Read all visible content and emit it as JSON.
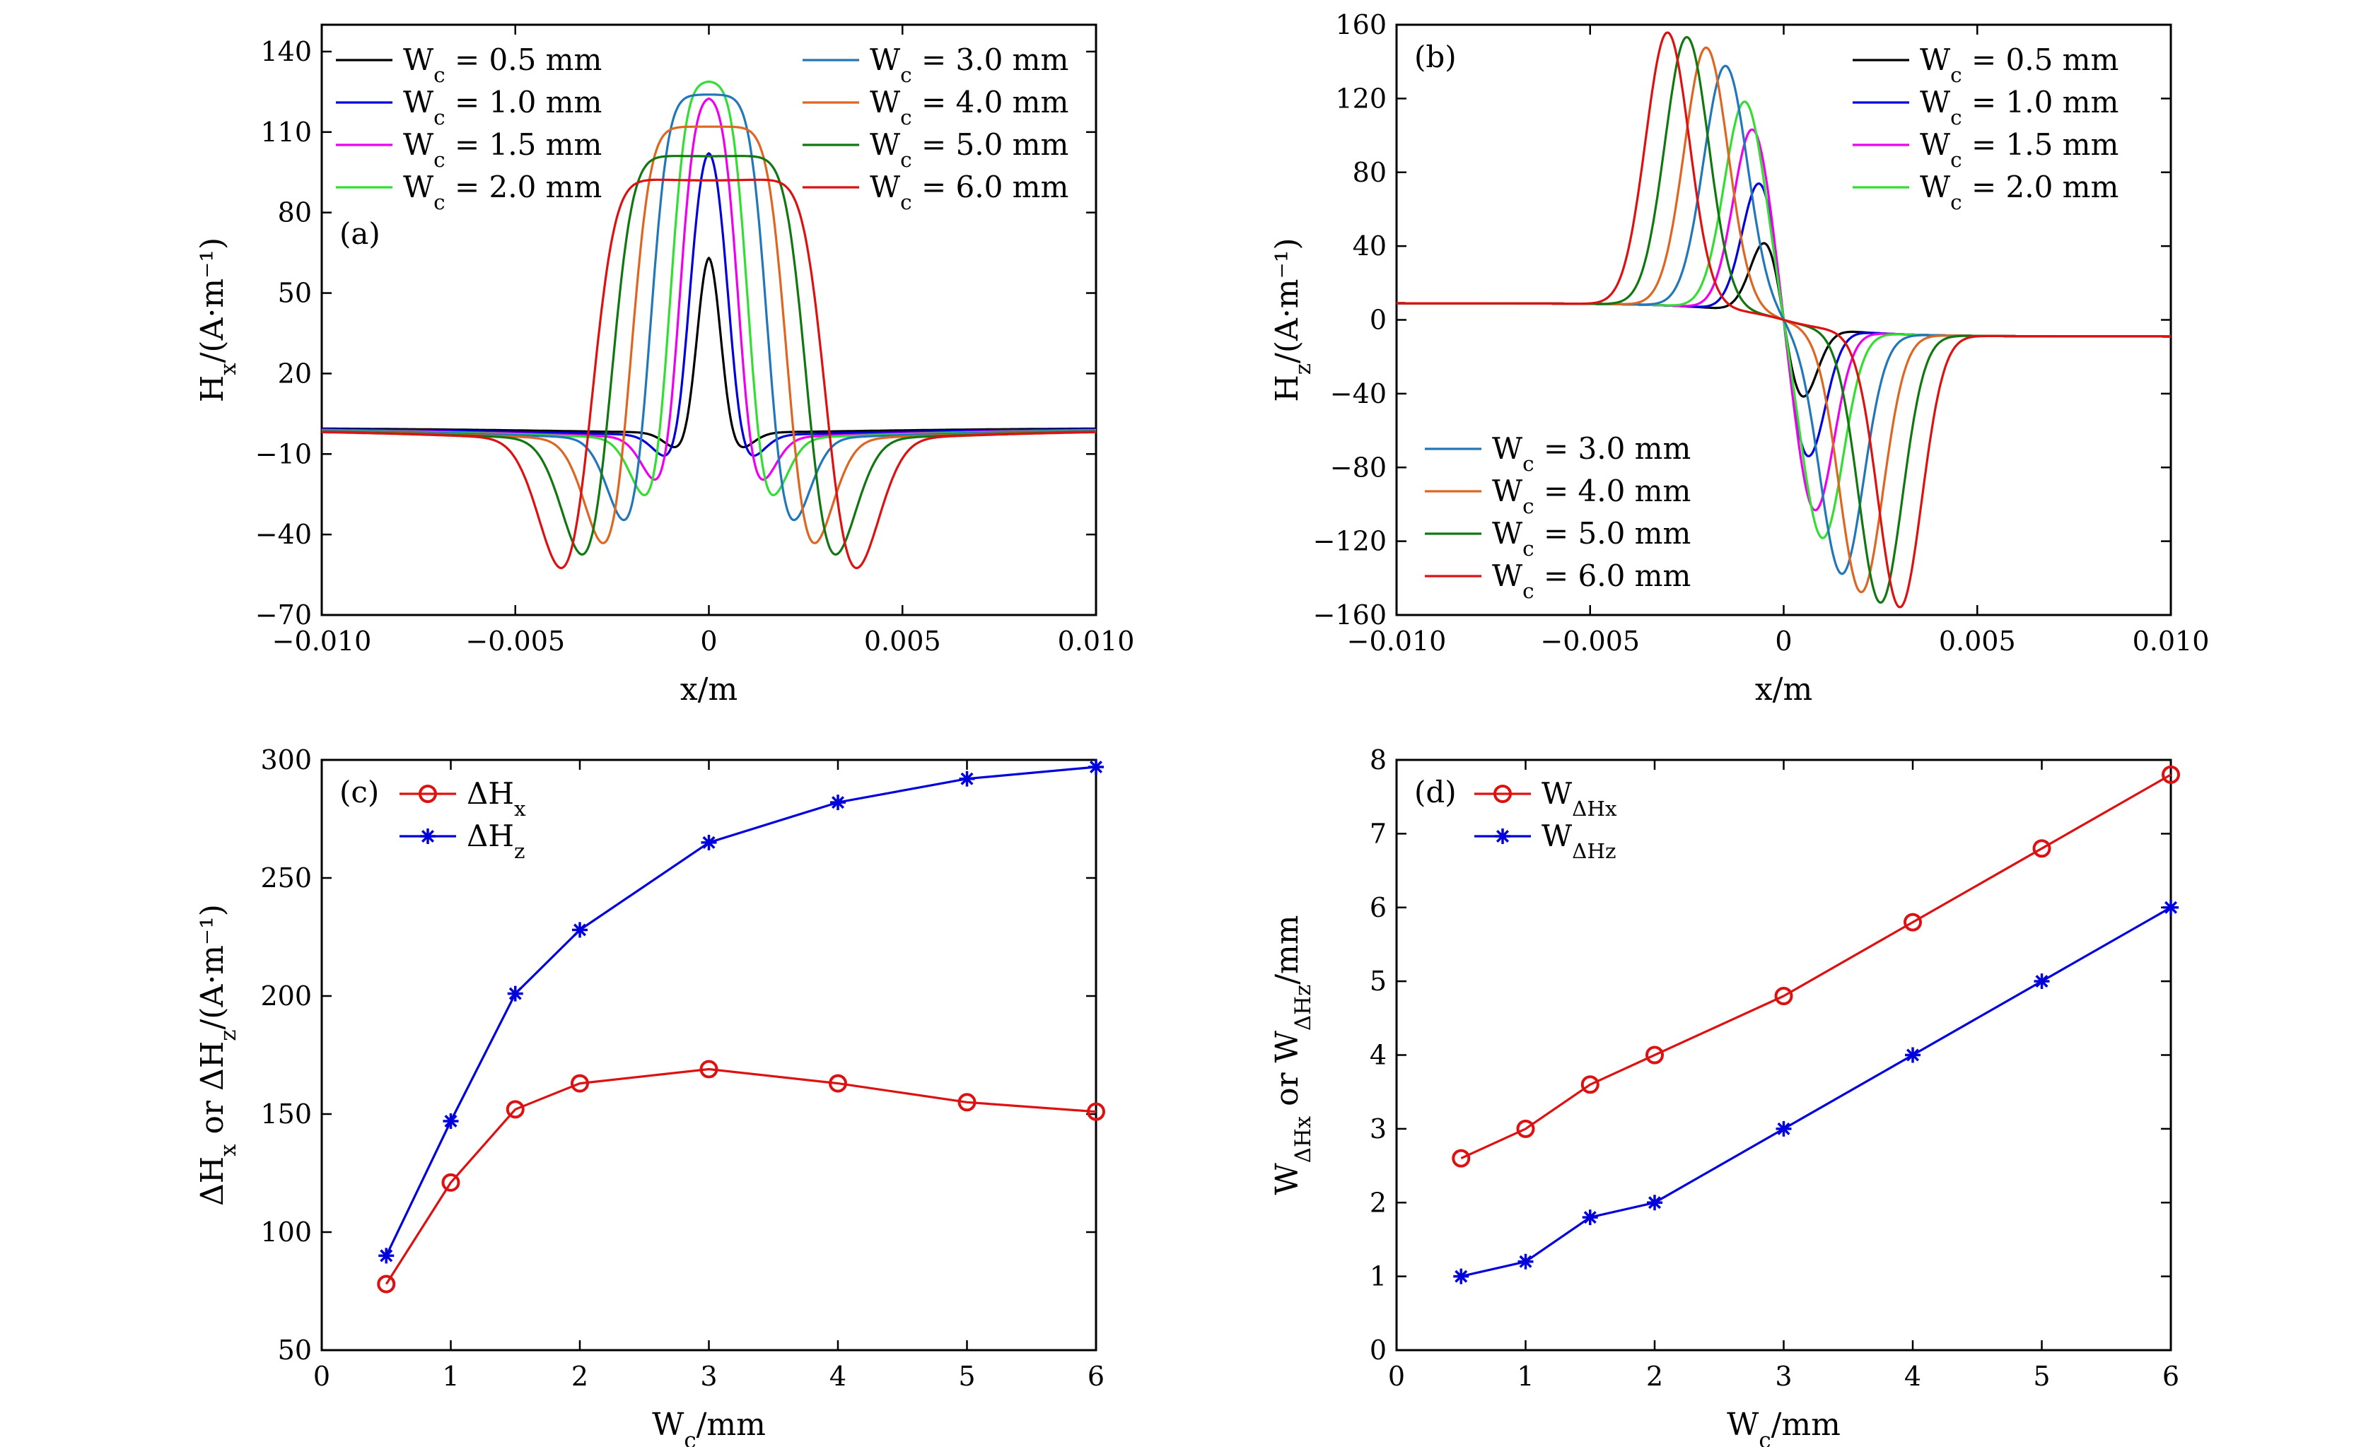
{
  "chart_data": [
    {
      "panel": "(a)",
      "type": "line",
      "xlabel": "x/m",
      "ylabel": "H_x/(A·m⁻¹)",
      "xlim": [
        -0.01,
        0.01
      ],
      "ylim": [
        -70,
        150
      ],
      "xticks": [
        "−0.010",
        "−0.005",
        "0",
        "0.005",
        "0.010"
      ],
      "xtick_values": [
        -0.01,
        -0.005,
        0,
        0.005,
        0.01
      ],
      "yticks": [
        "−70",
        "−40",
        "−10",
        "20",
        "50",
        "80",
        "110",
        "140"
      ],
      "ytick_values": [
        -70,
        -40,
        -10,
        20,
        50,
        80,
        110,
        140
      ],
      "legend_position": "top",
      "series": [
        {
          "name": "W_c = 0.5 mm",
          "color": "#000000",
          "w": 0.5,
          "peak": 65,
          "trough": -10,
          "baseline": -2
        },
        {
          "name": "W_c = 1.0 mm",
          "color": "#0000dd",
          "w": 1.0,
          "peak": 103,
          "trough": -14,
          "baseline": -3
        },
        {
          "name": "W_c = 1.5 mm",
          "color": "#ee00ee",
          "w": 1.5,
          "peak": 123,
          "trough": -25,
          "baseline": -4
        },
        {
          "name": "W_c = 2.0 mm",
          "color": "#33dd33",
          "w": 2.0,
          "peak": 129,
          "trough": -32,
          "baseline": -4.5
        },
        {
          "name": "W_c = 3.0 mm",
          "color": "#2277bb",
          "w": 3.0,
          "peak": 124,
          "trough": -43,
          "baseline": -5
        },
        {
          "name": "W_c = 4.0 mm",
          "color": "#dd6622",
          "w": 4.0,
          "peak": 112,
          "trough": -53,
          "baseline": -6
        },
        {
          "name": "W_c = 5.0 mm",
          "color": "#117711",
          "w": 5.0,
          "peak": 101,
          "trough": -58,
          "baseline": -6.5
        },
        {
          "name": "W_c = 6.0 mm",
          "color": "#dd1111",
          "w": 6.0,
          "peak": 92,
          "trough": -64,
          "baseline": -7
        }
      ],
      "annotation": "(a)"
    },
    {
      "panel": "(b)",
      "type": "line",
      "xlabel": "x/m",
      "ylabel": "H_z/(A·m⁻¹)",
      "xlim": [
        -0.01,
        0.01
      ],
      "ylim": [
        -160,
        160
      ],
      "xticks": [
        "−0.010",
        "−0.005",
        "0",
        "0.005",
        "0.010"
      ],
      "xtick_values": [
        -0.01,
        -0.005,
        0,
        0.005,
        0.01
      ],
      "yticks": [
        "−160",
        "−120",
        "−80",
        "−40",
        "0",
        "40",
        "80",
        "120",
        "160"
      ],
      "ytick_values": [
        -160,
        -120,
        -80,
        -40,
        0,
        40,
        80,
        120,
        160
      ],
      "series": [
        {
          "name": "W_c = 0.5 mm",
          "color": "#000000",
          "peak": 45,
          "xpk": -0.0004,
          "sig": 0.0006
        },
        {
          "name": "W_c = 1.0 mm",
          "color": "#0000dd",
          "peak": 73,
          "xpk": -0.0006,
          "sig": 0.00065
        },
        {
          "name": "W_c = 1.5 mm",
          "color": "#ee00ee",
          "peak": 100,
          "xpk": -0.0008,
          "sig": 0.0007
        },
        {
          "name": "W_c = 2.0 mm",
          "color": "#33dd33",
          "peak": 114,
          "xpk": -0.001,
          "sig": 0.00075
        },
        {
          "name": "W_c = 3.0 mm",
          "color": "#2277bb",
          "peak": 132,
          "xpk": -0.0015,
          "sig": 0.0008
        },
        {
          "name": "W_c = 4.0 mm",
          "color": "#dd6622",
          "peak": 141,
          "xpk": -0.002,
          "sig": 0.0008
        },
        {
          "name": "W_c = 5.0 mm",
          "color": "#117711",
          "peak": 146,
          "xpk": -0.0025,
          "sig": 0.0008
        },
        {
          "name": "W_c = 6.0 mm",
          "color": "#dd1111",
          "peak": 148,
          "xpk": -0.003,
          "sig": 0.0008
        }
      ],
      "annotation": "(b)"
    },
    {
      "panel": "(c)",
      "type": "line",
      "xlabel": "W_c/mm",
      "ylabel": "ΔH_x or ΔH_z/(A·m⁻¹)",
      "xlim": [
        0,
        6
      ],
      "ylim": [
        50,
        300
      ],
      "xticks": [
        "0",
        "1",
        "2",
        "3",
        "4",
        "5",
        "6"
      ],
      "xtick_values": [
        0,
        1,
        2,
        3,
        4,
        5,
        6
      ],
      "yticks": [
        "50",
        "100",
        "150",
        "200",
        "250",
        "300"
      ],
      "ytick_values": [
        50,
        100,
        150,
        200,
        250,
        300
      ],
      "x": [
        0.5,
        1,
        1.5,
        2,
        3,
        4,
        5,
        6
      ],
      "series": [
        {
          "name": "ΔH_x",
          "color": "#dd1111",
          "marker": "circle",
          "values": [
            78,
            121,
            152,
            163,
            169,
            163,
            155,
            151
          ]
        },
        {
          "name": "ΔH_z",
          "color": "#0000dd",
          "marker": "star",
          "values": [
            90,
            147,
            201,
            228,
            265,
            282,
            292,
            297
          ]
        }
      ],
      "annotation": "(c)"
    },
    {
      "panel": "(d)",
      "type": "line",
      "xlabel": "W_c/mm",
      "ylabel": "W_ΔHx or W_ΔHz/mm",
      "xlim": [
        0,
        6
      ],
      "ylim": [
        0,
        8
      ],
      "xticks": [
        "0",
        "1",
        "2",
        "3",
        "4",
        "5",
        "6"
      ],
      "xtick_values": [
        0,
        1,
        2,
        3,
        4,
        5,
        6
      ],
      "yticks": [
        "0",
        "1",
        "2",
        "3",
        "4",
        "5",
        "6",
        "7",
        "8"
      ],
      "ytick_values": [
        0,
        1,
        2,
        3,
        4,
        5,
        6,
        7,
        8
      ],
      "x": [
        0.5,
        1,
        1.5,
        2,
        3,
        4,
        5,
        6
      ],
      "series": [
        {
          "name": "W_ΔHx",
          "color": "#dd1111",
          "marker": "circle",
          "values": [
            2.6,
            3.0,
            3.6,
            4.0,
            4.8,
            5.8,
            6.8,
            7.8
          ]
        },
        {
          "name": "W_ΔHz",
          "color": "#0000dd",
          "marker": "star",
          "values": [
            1.0,
            1.2,
            1.8,
            2.0,
            3.0,
            4.0,
            5.0,
            6.0
          ]
        }
      ],
      "annotation": "(d)"
    }
  ]
}
